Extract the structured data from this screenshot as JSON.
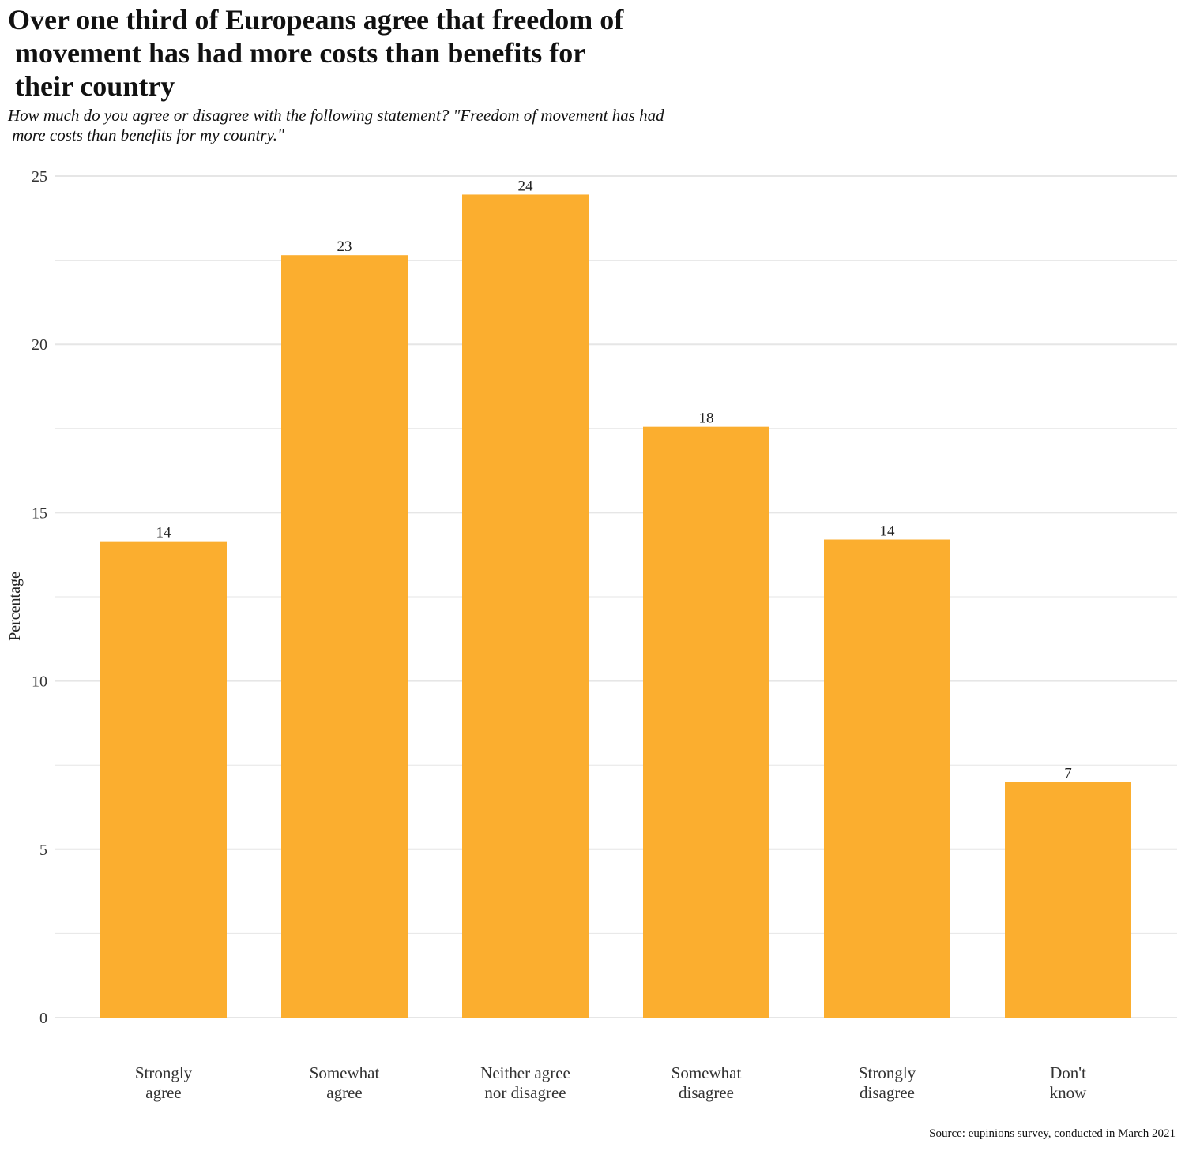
{
  "title": "Over one third of Europeans agree that freedom of\n movement has had more costs than benefits for\n their country",
  "subtitle": "How much do you agree or disagree with the following statement? \"Freedom of movement has had\n more costs than benefits for my country.\"",
  "caption": "Source: eupinions survey, conducted in March 2021",
  "colors": {
    "bar": "#FBAE2F",
    "grid": "#E6E6E6",
    "background": "#FFFFFF"
  },
  "chart_data": {
    "type": "bar",
    "categories": [
      [
        "Strongly",
        "agree"
      ],
      [
        "Somewhat",
        "agree"
      ],
      [
        "Neither agree",
        "nor disagree"
      ],
      [
        "Somewhat",
        "disagree"
      ],
      [
        "Strongly",
        "disagree"
      ],
      [
        "Don't",
        "know"
      ]
    ],
    "values": [
      14.15,
      22.65,
      24.45,
      17.55,
      14.2,
      7.0
    ],
    "labels": [
      "14",
      "23",
      "24",
      "18",
      "14",
      "7"
    ],
    "ylabel": "Percentage",
    "xlabel": "",
    "ylim": [
      0,
      25
    ],
    "yticks": [
      0,
      5,
      10,
      15,
      20,
      25
    ],
    "minor_gridlines": [
      2.5,
      7.5,
      12.5,
      17.5,
      22.5
    ],
    "legend": "none"
  }
}
